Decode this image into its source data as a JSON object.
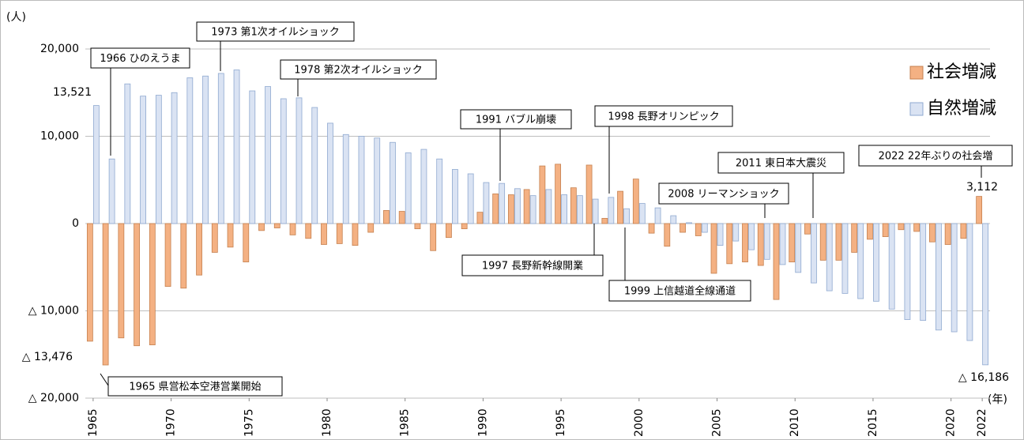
{
  "chart_data": {
    "type": "bar",
    "y_axis_label": "(人)",
    "x_axis_label": "(年)",
    "x": [
      1965,
      1966,
      1967,
      1968,
      1969,
      1970,
      1971,
      1972,
      1973,
      1974,
      1975,
      1976,
      1977,
      1978,
      1979,
      1980,
      1981,
      1982,
      1983,
      1984,
      1985,
      1986,
      1987,
      1988,
      1989,
      1990,
      1991,
      1992,
      1993,
      1994,
      1995,
      1996,
      1997,
      1998,
      1999,
      2000,
      2001,
      2002,
      2003,
      2004,
      2005,
      2006,
      2007,
      2008,
      2009,
      2010,
      2011,
      2012,
      2013,
      2014,
      2015,
      2016,
      2017,
      2018,
      2019,
      2020,
      2021,
      2022
    ],
    "xlim": [
      1964.5,
      2022.5
    ],
    "xticks": [
      1965,
      1970,
      1975,
      1980,
      1985,
      1990,
      1995,
      2000,
      2005,
      2010,
      2015,
      2020,
      2022
    ],
    "ylim": [
      -20000,
      20000
    ],
    "yticks": [
      {
        "value": 20000,
        "label": "20,000"
      },
      {
        "value": 10000,
        "label": "10,000"
      },
      0,
      {
        "value": -10000,
        "label": "△ 10,000"
      },
      {
        "value": -20000,
        "label": "△ 20,000"
      }
    ],
    "grid": true,
    "legend_position": "upper right",
    "series": [
      {
        "name": "社会増減",
        "color": "#f4b183",
        "values": [
          -13476,
          -16200,
          -13100,
          -14000,
          -13900,
          -7200,
          -7400,
          -5900,
          -3300,
          -2700,
          -4400,
          -800,
          -500,
          -1300,
          -1700,
          -2400,
          -2300,
          -2500,
          -1000,
          1500,
          1400,
          -600,
          -3100,
          -1600,
          -600,
          1300,
          3400,
          3300,
          3900,
          6600,
          6800,
          4100,
          6700,
          600,
          3700,
          5100,
          -1100,
          -2600,
          -1000,
          -1400,
          -5700,
          -4600,
          -4400,
          -4800,
          -8700,
          -4400,
          -1200,
          -4200,
          -4200,
          -3300,
          -1800,
          -1500,
          -700,
          -900,
          -2100,
          -2400,
          -1700,
          3112
        ],
        "value_labels": [
          "△ 13,476",
          null,
          null,
          null,
          null,
          null,
          null,
          null,
          null,
          null,
          null,
          null,
          null,
          null,
          null,
          null,
          null,
          null,
          null,
          null,
          null,
          null,
          null,
          null,
          null,
          null,
          null,
          null,
          null,
          null,
          null,
          null,
          null,
          null,
          null,
          null,
          null,
          null,
          null,
          null,
          null,
          null,
          null,
          null,
          null,
          null,
          null,
          null,
          null,
          null,
          null,
          null,
          null,
          null,
          null,
          null,
          null,
          "3,112"
        ]
      },
      {
        "name": "自然増減",
        "color": "#dae3f3",
        "values": [
          13521,
          7400,
          16000,
          14600,
          14700,
          15000,
          16700,
          16900,
          17200,
          17600,
          15200,
          15700,
          14300,
          14400,
          13300,
          11500,
          10200,
          10000,
          9800,
          9300,
          8100,
          8500,
          7400,
          6200,
          5700,
          4700,
          4600,
          4000,
          3200,
          3900,
          3300,
          3200,
          2800,
          3000,
          1700,
          2300,
          1800,
          900,
          100,
          -1000,
          -2500,
          -2000,
          -3000,
          -4100,
          -4700,
          -5600,
          -6800,
          -7700,
          -8000,
          -8600,
          -8900,
          -9800,
          -11000,
          -11100,
          -12200,
          -12400,
          -13400,
          -16186
        ],
        "value_labels": [
          "13,521",
          null,
          null,
          null,
          null,
          null,
          null,
          null,
          null,
          null,
          null,
          null,
          null,
          null,
          null,
          null,
          null,
          null,
          null,
          null,
          null,
          null,
          null,
          null,
          null,
          null,
          null,
          null,
          null,
          null,
          null,
          null,
          null,
          null,
          null,
          null,
          null,
          null,
          null,
          null,
          null,
          null,
          null,
          null,
          null,
          null,
          null,
          null,
          null,
          null,
          null,
          null,
          null,
          null,
          null,
          null,
          null,
          "△ 16,186"
        ]
      }
    ],
    "annotations": [
      "1965 県営松本空港営業開始",
      "1966 ひのえうま",
      "1973 第1次オイルショック",
      "1978 第2次オイルショック",
      "1991 バブル崩壊",
      "1997 長野新幹線開業",
      "1998 長野オリンピック",
      "1999 上信越道全線通道",
      "2008 リーマンショック",
      "2011 東日本大震災",
      "2022 22年ぶりの社会増"
    ]
  }
}
